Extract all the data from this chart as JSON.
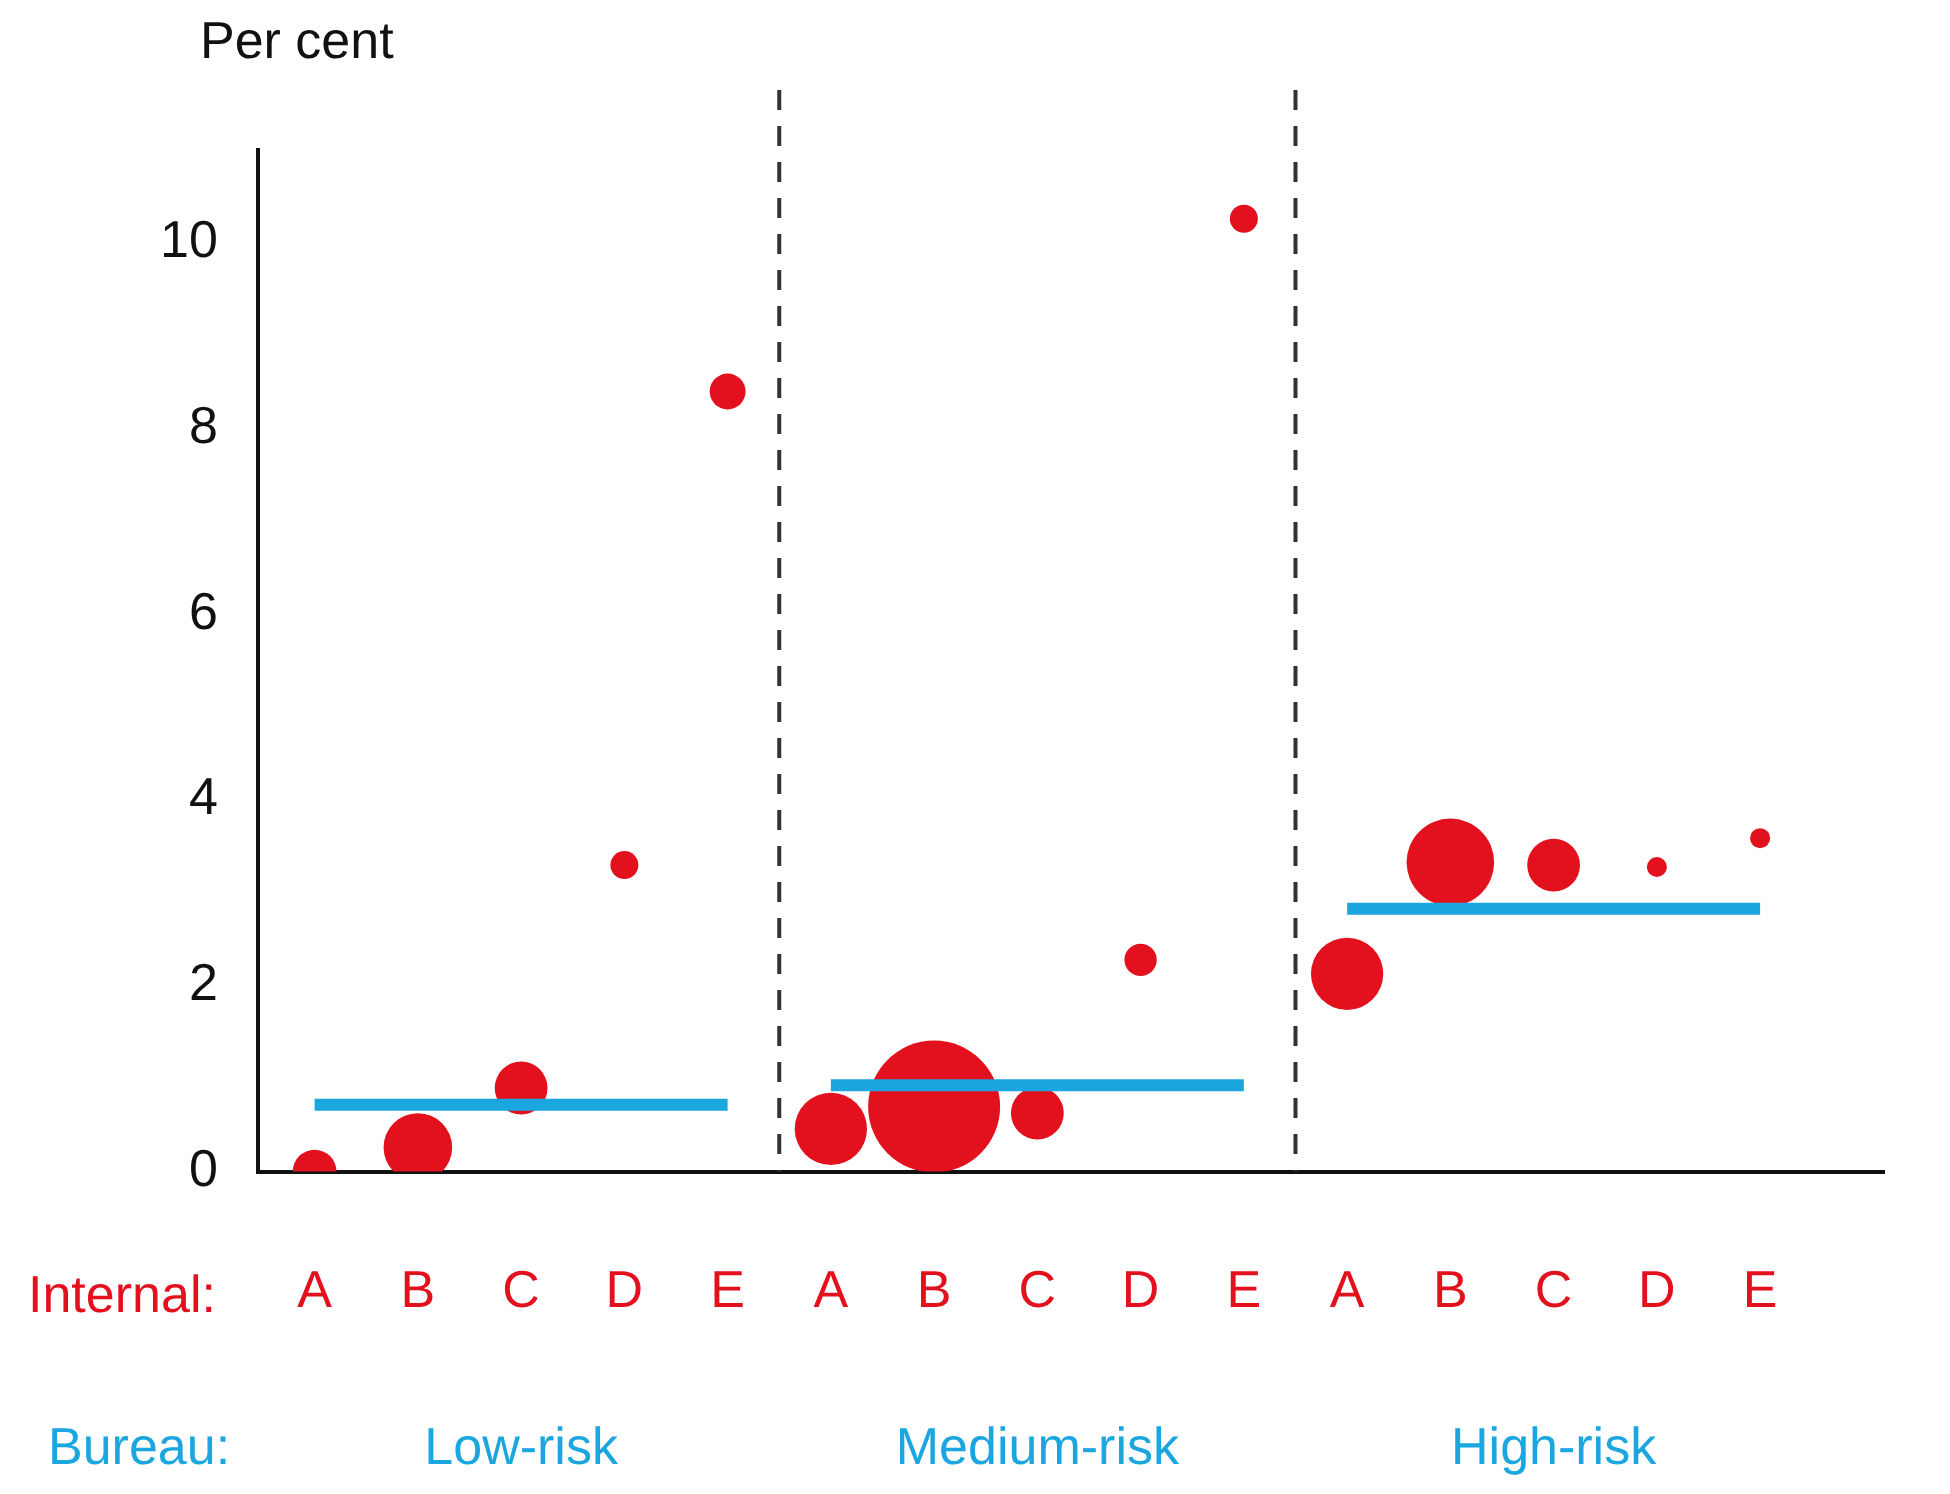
{
  "chart_data": {
    "type": "bubble",
    "ylabel": "Per cent",
    "categories": [
      "A",
      "B",
      "C",
      "D",
      "E",
      "A",
      "B",
      "C",
      "D",
      "E",
      "A",
      "B",
      "C",
      "D",
      "E"
    ],
    "ylim": [
      0,
      11
    ],
    "yticks": [
      0,
      2,
      4,
      6,
      8,
      10
    ],
    "series": [
      {
        "color": "#e3101e",
        "values": [
          0,
          0.26,
          0.9,
          3.3,
          8.4,
          0.46,
          0.7,
          0.63,
          2.28,
          10.26,
          2.13,
          3.33,
          3.3,
          3.28,
          3.59
        ],
        "sizes": [
          0.11,
          0.27,
          0.16,
          0.045,
          0.074,
          0.3,
          1,
          0.16,
          0.06,
          0.045,
          0.3,
          0.44,
          0.16,
          0.023,
          0.023
        ]
      },
      {
        "type": "line",
        "marker": "none",
        "color": "#1ba6e0",
        "values": [
          0.72,
          0.72,
          0.72,
          0.72,
          0.72,
          null,
          null,
          null,
          null,
          null,
          null,
          null,
          null,
          null,
          null
        ]
      },
      {
        "type": "line",
        "marker": "none",
        "color": "#1ba6e0",
        "values": [
          null,
          null,
          null,
          null,
          null,
          0.93,
          0.93,
          0.93,
          0.93,
          0.93,
          null,
          null,
          null,
          null,
          null
        ]
      },
      {
        "type": "line",
        "marker": "none",
        "color": "#1ba6e0",
        "values": [
          null,
          null,
          null,
          null,
          null,
          null,
          null,
          null,
          null,
          null,
          2.83,
          2.83,
          2.83,
          2.83,
          2.83
        ]
      }
    ],
    "annotations": [
      "Internal:",
      "Bureau:",
      "Low-risk",
      "Medium-risk",
      "High-risk"
    ],
    "grid": false,
    "legend": false,
    "marker": "circle"
  }
}
